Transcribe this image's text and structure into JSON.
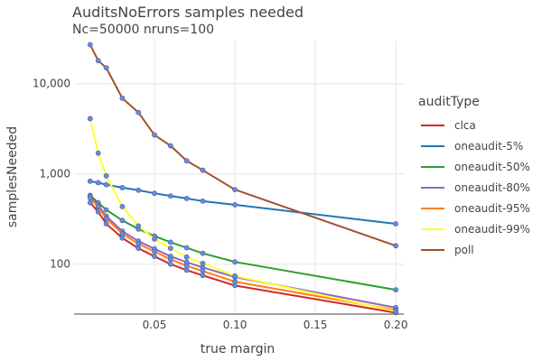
{
  "chart_data": {
    "type": "line",
    "title": "AuditsNoErrors samples needed",
    "subtitle": "Nc=50000 nruns=100",
    "xlabel": "true margin",
    "ylabel": "samplesNeeded",
    "y_scale": "log",
    "xlim": [
      0.0,
      0.205
    ],
    "ylim": [
      28,
      30000
    ],
    "x_ticks": [
      0.05,
      0.1,
      0.15,
      0.2
    ],
    "x_tick_labels": [
      "0.05",
      "0.10",
      "0.15",
      "0.20"
    ],
    "y_ticks": [
      100,
      1000,
      10000
    ],
    "y_tick_labels": [
      "100",
      "1,000",
      "10,000"
    ],
    "grid": true,
    "legend": {
      "title": "auditType",
      "position": "right"
    },
    "x": [
      0.01,
      0.015,
      0.02,
      0.03,
      0.04,
      0.05,
      0.06,
      0.07,
      0.08,
      0.1,
      0.2
    ],
    "series": [
      {
        "name": "clca",
        "color": "#d62728",
        "values": [
          480,
          380,
          280,
          195,
          150,
          122,
          100,
          86,
          75,
          58,
          29
        ]
      },
      {
        "name": "oneaudit-5%",
        "color": "#1f77b4",
        "values": [
          830,
          800,
          760,
          705,
          660,
          610,
          570,
          535,
          500,
          455,
          280
        ]
      },
      {
        "name": "oneaudit-50%",
        "color": "#2ca02c",
        "values": [
          580,
          480,
          400,
          305,
          245,
          205,
          175,
          152,
          132,
          106,
          52
        ]
      },
      {
        "name": "oneaudit-80%",
        "color": "#9467bd",
        "values": [
          560,
          450,
          340,
          232,
          180,
          148,
          122,
          105,
          92,
          72,
          33
        ]
      },
      {
        "name": "oneaudit-95%",
        "color": "#ff7f0e",
        "values": [
          540,
          430,
          320,
          218,
          168,
          138,
          113,
          96,
          84,
          64,
          31
        ]
      },
      {
        "name": "oneaudit-99%",
        "color": "#ffff33",
        "values": [
          4100,
          1700,
          950,
          435,
          265,
          190,
          150,
          120,
          102,
          74,
          30
        ]
      },
      {
        "name": "poll",
        "color": "#a0522d",
        "values": [
          27000,
          18000,
          15000,
          6900,
          4800,
          2700,
          2050,
          1400,
          1100,
          670,
          160
        ]
      }
    ],
    "marker_color": "#6b8bd6"
  }
}
